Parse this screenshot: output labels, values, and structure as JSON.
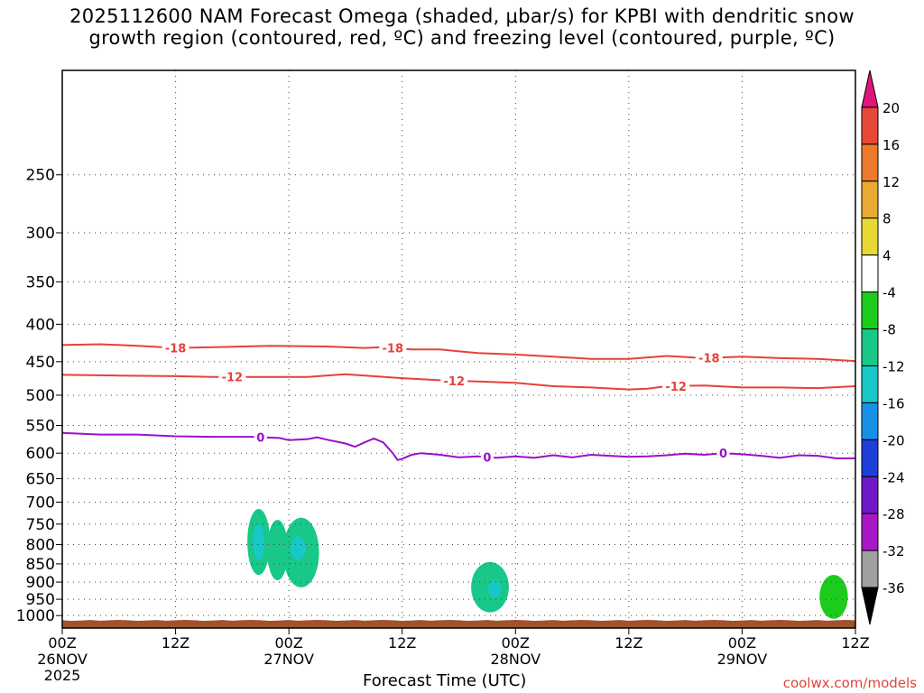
{
  "title": {
    "line1": "2025112600 NAM Forecast Omega (shaded, μbar/s) for KPBI with dendritic snow",
    "line2": "growth region (contoured, red, ºC) and freezing level (contoured, purple, ºC)"
  },
  "attribution": "coolwx.com/models",
  "chart_data": {
    "type": "heatmap",
    "title": "2025112600 NAM Forecast Omega (shaded, μbar/s) for KPBI with dendritic snow growth region (contoured, red, ºC) and freezing level (contoured, purple, ºC)",
    "xlabel": "Forecast Time (UTC)",
    "ylabel": "",
    "x_unit": "hours since 2025-11-26 00Z",
    "xlim": [
      0,
      84
    ],
    "ylim_hPa": [
      1040,
      180
    ],
    "y_scale": "log",
    "grid": true,
    "x_ticks": [
      {
        "hour": 0,
        "label": "00Z",
        "date": "26NOV",
        "year": "2025"
      },
      {
        "hour": 12,
        "label": "12Z",
        "date": "",
        "year": ""
      },
      {
        "hour": 24,
        "label": "00Z",
        "date": "27NOV",
        "year": ""
      },
      {
        "hour": 36,
        "label": "12Z",
        "date": "",
        "year": ""
      },
      {
        "hour": 48,
        "label": "00Z",
        "date": "28NOV",
        "year": ""
      },
      {
        "hour": 60,
        "label": "12Z",
        "date": "",
        "year": ""
      },
      {
        "hour": 72,
        "label": "00Z",
        "date": "29NOV",
        "year": ""
      },
      {
        "hour": 84,
        "label": "12Z",
        "date": "",
        "year": ""
      }
    ],
    "y_ticks": [
      250,
      300,
      350,
      400,
      450,
      500,
      550,
      600,
      650,
      700,
      750,
      800,
      850,
      900,
      950,
      1000
    ],
    "contours": [
      {
        "name": "dendritic -18C",
        "label": "-18",
        "color": "#e8403a",
        "label_hours": [
          12,
          35,
          68.5
        ],
        "points": [
          [
            0,
            427
          ],
          [
            4,
            426
          ],
          [
            8,
            428
          ],
          [
            12,
            431
          ],
          [
            16,
            430
          ],
          [
            22,
            428
          ],
          [
            28,
            429
          ],
          [
            32,
            431
          ],
          [
            34,
            430
          ],
          [
            37,
            433
          ],
          [
            40,
            433
          ],
          [
            44,
            438
          ],
          [
            48,
            440
          ],
          [
            52,
            443
          ],
          [
            56,
            446
          ],
          [
            60,
            446
          ],
          [
            64,
            442
          ],
          [
            68,
            445
          ],
          [
            72,
            443
          ],
          [
            76,
            445
          ],
          [
            80,
            446
          ],
          [
            84,
            449
          ]
        ]
      },
      {
        "name": "dendritic -12C",
        "label": "-12",
        "color": "#e8403a",
        "label_hours": [
          18,
          41.5,
          65
        ],
        "points": [
          [
            0,
            469
          ],
          [
            6,
            470
          ],
          [
            12,
            471
          ],
          [
            16,
            472
          ],
          [
            20,
            472
          ],
          [
            26,
            472
          ],
          [
            30,
            468
          ],
          [
            36,
            474
          ],
          [
            40,
            477
          ],
          [
            44,
            479
          ],
          [
            48,
            481
          ],
          [
            52,
            486
          ],
          [
            56,
            488
          ],
          [
            60,
            491
          ],
          [
            62,
            490
          ],
          [
            64,
            486
          ],
          [
            68,
            485
          ],
          [
            72,
            488
          ],
          [
            76,
            488
          ],
          [
            80,
            489
          ],
          [
            84,
            486
          ]
        ]
      },
      {
        "name": "freezing level 0C",
        "label": "0",
        "color": "#9a10c8",
        "label_hours": [
          21,
          45,
          70
        ],
        "points": [
          [
            0,
            563
          ],
          [
            4,
            566
          ],
          [
            8,
            566
          ],
          [
            12,
            569
          ],
          [
            16,
            570
          ],
          [
            20,
            570
          ],
          [
            23,
            572
          ],
          [
            24,
            576
          ],
          [
            26,
            574
          ],
          [
            27,
            571
          ],
          [
            28,
            575
          ],
          [
            30,
            582
          ],
          [
            31,
            588
          ],
          [
            32,
            580
          ],
          [
            33,
            573
          ],
          [
            34,
            580
          ],
          [
            35,
            600
          ],
          [
            35.5,
            613
          ],
          [
            36,
            611
          ],
          [
            37,
            603
          ],
          [
            38,
            600
          ],
          [
            40,
            603
          ],
          [
            42,
            608
          ],
          [
            44,
            606
          ],
          [
            46,
            609
          ],
          [
            48,
            606
          ],
          [
            50,
            609
          ],
          [
            52,
            604
          ],
          [
            54,
            608
          ],
          [
            56,
            603
          ],
          [
            58,
            605
          ],
          [
            60,
            607
          ],
          [
            62,
            606
          ],
          [
            64,
            604
          ],
          [
            66,
            601
          ],
          [
            68,
            603
          ],
          [
            70,
            600
          ],
          [
            72,
            602
          ],
          [
            74,
            605
          ],
          [
            76,
            609
          ],
          [
            78,
            604
          ],
          [
            80,
            605
          ],
          [
            82,
            610
          ],
          [
            84,
            610
          ]
        ]
      }
    ],
    "omega_regions": [
      {
        "value_range": [
          -12,
          -8
        ],
        "center_hour": 20.8,
        "center_hPa": 800,
        "hours_halfwidth": 1.2,
        "hPa_range": [
          715,
          880
        ]
      },
      {
        "value_range": [
          -12,
          -8
        ],
        "center_hour": 22.8,
        "center_hPa": 810,
        "hours_halfwidth": 1.1,
        "hPa_range": [
          740,
          895
        ]
      },
      {
        "value_range": [
          -12,
          -8
        ],
        "center_hour": 25.3,
        "center_hPa": 820,
        "hours_halfwidth": 1.9,
        "hPa_range": [
          735,
          915
        ]
      },
      {
        "value_range": [
          -12,
          -8
        ],
        "center_hour": 45.3,
        "center_hPa": 920,
        "hours_halfwidth": 2.0,
        "hPa_range": [
          845,
          990
        ]
      },
      {
        "value_range": [
          -8,
          -4
        ],
        "center_hour": 81.7,
        "center_hPa": 935,
        "hours_halfwidth": 1.5,
        "hPa_range": [
          880,
          1010
        ]
      }
    ],
    "omega_cores": [
      {
        "value_range": [
          -16,
          -12
        ],
        "center_hour": 20.8,
        "center_hPa": 790,
        "hours_halfwidth": 0.6,
        "hPa_range": [
          750,
          840
        ]
      },
      {
        "value_range": [
          -16,
          -12
        ],
        "center_hour": 25.0,
        "center_hPa": 805,
        "hours_halfwidth": 0.8,
        "hPa_range": [
          780,
          840
        ]
      },
      {
        "value_range": [
          -16,
          -12
        ],
        "center_hour": 45.8,
        "center_hPa": 920,
        "hours_halfwidth": 0.7,
        "hPa_range": [
          895,
          945
        ]
      }
    ],
    "terrain": {
      "color": "#a0522d",
      "top_hPa": 1015
    },
    "colorbar": {
      "unit": "μbar/s",
      "labels": [
        "20",
        "16",
        "12",
        "8",
        "4",
        "-4",
        "-8",
        "-12",
        "-16",
        "-20",
        "-24",
        "-28",
        "-32",
        "-36"
      ],
      "segments": [
        {
          "from": 20,
          "to": 99,
          "color": "#e0177a"
        },
        {
          "from": 16,
          "to": 20,
          "color": "#e84838"
        },
        {
          "from": 12,
          "to": 16,
          "color": "#ec7a2a"
        },
        {
          "from": 8,
          "to": 12,
          "color": "#e8aa32"
        },
        {
          "from": 4,
          "to": 8,
          "color": "#e8d832"
        },
        {
          "from": -4,
          "to": 4,
          "color": "#ffffff"
        },
        {
          "from": -8,
          "to": -4,
          "color": "#1ccc1c"
        },
        {
          "from": -12,
          "to": -8,
          "color": "#18c888"
        },
        {
          "from": -16,
          "to": -12,
          "color": "#18c8c8"
        },
        {
          "from": -20,
          "to": -16,
          "color": "#1890e8"
        },
        {
          "from": -24,
          "to": -20,
          "color": "#1c40d8"
        },
        {
          "from": -28,
          "to": -24,
          "color": "#7018c8"
        },
        {
          "from": -32,
          "to": -28,
          "color": "#a818c8"
        },
        {
          "from": -36,
          "to": -32,
          "color": "#a0a0a0"
        },
        {
          "from": -99,
          "to": -36,
          "color": "#000000"
        }
      ]
    }
  }
}
